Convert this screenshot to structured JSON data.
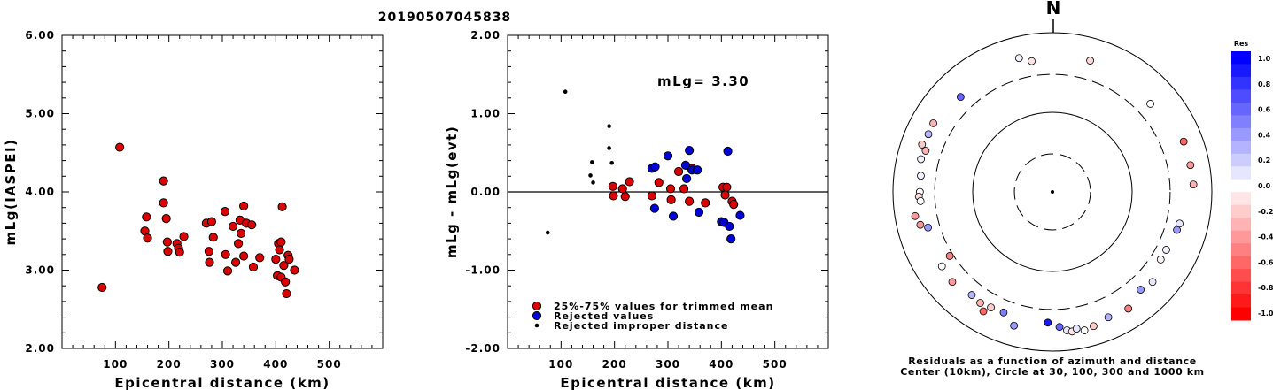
{
  "figure_title": "20190507045838",
  "chart_data": [
    {
      "type": "scatter",
      "xlabel": "Epicentral distance (km)",
      "ylabel": "mLg(IASPEI)",
      "xlim": [
        0,
        600
      ],
      "ylim": [
        2.0,
        6.0
      ],
      "xticks": [
        "100",
        "200",
        "300",
        "400",
        "500"
      ],
      "yticks": [
        "2.00",
        "3.00",
        "4.00",
        "5.00",
        "6.00"
      ],
      "series": [
        {
          "color": "#dd0000",
          "points": [
            [
              75,
              2.78
            ],
            [
              108,
              4.57
            ],
            [
              155,
              3.5
            ],
            [
              158,
              3.68
            ],
            [
              160,
              3.41
            ],
            [
              190,
              4.14
            ],
            [
              190,
              3.86
            ],
            [
              195,
              3.66
            ],
            [
              197,
              3.36
            ],
            [
              198,
              3.24
            ],
            [
              215,
              3.34
            ],
            [
              218,
              3.28
            ],
            [
              220,
              3.23
            ],
            [
              228,
              3.43
            ],
            [
              270,
              3.6
            ],
            [
              275,
              3.24
            ],
            [
              276,
              3.1
            ],
            [
              280,
              3.62
            ],
            [
              283,
              3.42
            ],
            [
              305,
              3.75
            ],
            [
              306,
              3.2
            ],
            [
              310,
              2.99
            ],
            [
              320,
              3.56
            ],
            [
              325,
              3.1
            ],
            [
              330,
              3.34
            ],
            [
              333,
              3.64
            ],
            [
              335,
              3.47
            ],
            [
              340,
              3.82
            ],
            [
              340,
              3.18
            ],
            [
              345,
              3.6
            ],
            [
              355,
              3.58
            ],
            [
              358,
              3.04
            ],
            [
              370,
              3.16
            ],
            [
              400,
              3.14
            ],
            [
              403,
              2.93
            ],
            [
              405,
              3.34
            ],
            [
              407,
              3.26
            ],
            [
              410,
              3.36
            ],
            [
              410,
              2.91
            ],
            [
              412,
              3.81
            ],
            [
              415,
              3.06
            ],
            [
              418,
              2.85
            ],
            [
              420,
              2.7
            ],
            [
              423,
              3.19
            ],
            [
              425,
              3.14
            ],
            [
              435,
              3.0
            ]
          ]
        }
      ]
    },
    {
      "type": "scatter",
      "xlabel": "Epicentral distance (km)",
      "ylabel": "mLg - mLg(evt)",
      "xlim": [
        0,
        600
      ],
      "ylim": [
        -2.0,
        2.0
      ],
      "xticks": [
        "100",
        "200",
        "300",
        "400",
        "500"
      ],
      "yticks": [
        "-2.00",
        "-1.00",
        "0.00",
        "1.00",
        "2.00"
      ],
      "annotation": "mLg= 3.30",
      "reference_line": 0.0,
      "legend": {
        "placement": "bottom-left",
        "entries": [
          {
            "label": "25%-75% values for trimmed mean",
            "color": "#dd0000",
            "marker": "large"
          },
          {
            "label": "Rejected values",
            "color": "#0000dd",
            "marker": "large"
          },
          {
            "label": "Rejected improper distance",
            "color": "#000000",
            "marker": "small"
          }
        ]
      },
      "series": [
        {
          "name": "25%-75% values for trimmed mean",
          "color": "#dd0000",
          "points": [
            [
              197,
              0.07
            ],
            [
              198,
              -0.05
            ],
            [
              215,
              0.04
            ],
            [
              220,
              -0.06
            ],
            [
              228,
              0.13
            ],
            [
              270,
              -0.05
            ],
            [
              283,
              0.12
            ],
            [
              305,
              0.04
            ],
            [
              306,
              -0.1
            ],
            [
              320,
              0.26
            ],
            [
              330,
              0.04
            ],
            [
              340,
              -0.12
            ],
            [
              345,
              0.3
            ],
            [
              370,
              -0.14
            ],
            [
              403,
              0.06
            ],
            [
              407,
              -0.04
            ],
            [
              410,
              0.06
            ],
            [
              420,
              -0.12
            ],
            [
              423,
              -0.16
            ]
          ]
        },
        {
          "name": "Rejected values",
          "color": "#0000dd",
          "points": [
            [
              270,
              0.3
            ],
            [
              275,
              -0.21
            ],
            [
              276,
              0.32
            ],
            [
              300,
              0.46
            ],
            [
              310,
              -0.31
            ],
            [
              333,
              0.34
            ],
            [
              335,
              0.17
            ],
            [
              340,
              0.53
            ],
            [
              345,
              0.28
            ],
            [
              355,
              0.28
            ],
            [
              358,
              -0.26
            ],
            [
              400,
              -0.38
            ],
            [
              405,
              -0.39
            ],
            [
              412,
              0.52
            ],
            [
              415,
              -0.44
            ],
            [
              418,
              -0.6
            ],
            [
              435,
              -0.3
            ]
          ]
        },
        {
          "name": "Rejected improper distance",
          "color": "#000000",
          "points": [
            [
              75,
              -0.52
            ],
            [
              108,
              1.28
            ],
            [
              155,
              0.21
            ],
            [
              158,
              0.38
            ],
            [
              160,
              0.12
            ],
            [
              190,
              0.84
            ],
            [
              190,
              0.56
            ],
            [
              195,
              0.37
            ]
          ]
        }
      ]
    },
    {
      "type": "polar-scatter",
      "north_label": "N",
      "rings_km": [
        30,
        100,
        300,
        1000
      ],
      "caption_line1": "Residuals as a function of azimuth and distance",
      "caption_line2": "Center (10km), Circle at 30, 100, 300 and 1000 km",
      "colorbar": {
        "title": "Res",
        "ticks": [
          "1.0",
          "0.8",
          "0.6",
          "0.4",
          "0.2",
          "0.0",
          "-0.2",
          "-0.4",
          "-0.6",
          "-0.8",
          "-1.0"
        ],
        "max_color": "#0000ff",
        "mid_color": "#ffffff",
        "min_color": "#ff0000"
      },
      "points": [
        {
          "azimuth_deg": 346,
          "distance_km": 540,
          "residual": 0.05
        },
        {
          "azimuth_deg": 16,
          "distance_km": 520,
          "residual": -0.15
        },
        {
          "azimuth_deg": 351,
          "distance_km": 460,
          "residual": -0.1
        },
        {
          "azimuth_deg": 316,
          "distance_km": 455,
          "residual": 0.6
        },
        {
          "azimuth_deg": 300,
          "distance_km": 530,
          "residual": -0.3
        },
        {
          "azimuth_deg": 295,
          "distance_km": 520,
          "residual": 0.3
        },
        {
          "azimuth_deg": 290,
          "distance_km": 550,
          "residual": -0.2
        },
        {
          "azimuth_deg": 288,
          "distance_km": 470,
          "residual": -0.3
        },
        {
          "azimuth_deg": 284,
          "distance_km": 500,
          "residual": 0.05
        },
        {
          "azimuth_deg": 277,
          "distance_km": 460,
          "residual": 0.05
        },
        {
          "azimuth_deg": 270,
          "distance_km": 460,
          "residual": 0.0
        },
        {
          "azimuth_deg": 268,
          "distance_km": 475,
          "residual": -0.15
        },
        {
          "azimuth_deg": 266,
          "distance_km": 455,
          "residual": 0.0
        },
        {
          "azimuth_deg": 260,
          "distance_km": 560,
          "residual": -0.4
        },
        {
          "azimuth_deg": 256,
          "distance_km": 510,
          "residual": -0.4
        },
        {
          "azimuth_deg": 254,
          "distance_km": 420,
          "residual": 0.4
        },
        {
          "azimuth_deg": 238,
          "distance_km": 330,
          "residual": -0.5
        },
        {
          "azimuth_deg": 236,
          "distance_km": 470,
          "residual": 0.0
        },
        {
          "azimuth_deg": 228,
          "distance_km": 490,
          "residual": -0.4
        },
        {
          "azimuth_deg": 218,
          "distance_km": 440,
          "residual": 0.3
        },
        {
          "azimuth_deg": 210,
          "distance_km": 540,
          "residual": -0.6
        },
        {
          "azimuth_deg": 213,
          "distance_km": 460,
          "residual": -0.3
        },
        {
          "azimuth_deg": 208,
          "distance_km": 440,
          "residual": -0.2
        },
        {
          "azimuth_deg": 202,
          "distance_km": 430,
          "residual": 0.5
        },
        {
          "azimuth_deg": 196,
          "distance_km": 560,
          "residual": 0.4
        },
        {
          "azimuth_deg": 182,
          "distance_km": 440,
          "residual": 0.9
        },
        {
          "azimuth_deg": 177,
          "distance_km": 500,
          "residual": 0.6
        },
        {
          "azimuth_deg": 174,
          "distance_km": 560,
          "residual": 0.1
        },
        {
          "azimuth_deg": 172,
          "distance_km": 590,
          "residual": -0.1
        },
        {
          "azimuth_deg": 170,
          "distance_km": 555,
          "residual": 0.1
        },
        {
          "azimuth_deg": 167,
          "distance_km": 610,
          "residual": 0.0
        },
        {
          "azimuth_deg": 163,
          "distance_km": 580,
          "residual": -0.2
        },
        {
          "azimuth_deg": 156,
          "distance_km": 530,
          "residual": 0.3
        },
        {
          "azimuth_deg": 147,
          "distance_km": 560,
          "residual": -0.5
        },
        {
          "azimuth_deg": 138,
          "distance_km": 450,
          "residual": 0.4
        },
        {
          "azimuth_deg": 132,
          "distance_km": 490,
          "residual": 0.1
        },
        {
          "azimuth_deg": 122,
          "distance_km": 400,
          "residual": -0.05
        },
        {
          "azimuth_deg": 117,
          "distance_km": 400,
          "residual": 0.05
        },
        {
          "azimuth_deg": 107,
          "distance_km": 430,
          "residual": 0.4
        },
        {
          "azimuth_deg": 104,
          "distance_km": 440,
          "residual": 0.1
        },
        {
          "azimuth_deg": 87,
          "distance_km": 590,
          "residual": -0.3
        },
        {
          "azimuth_deg": 79,
          "distance_km": 580,
          "residual": -0.4
        },
        {
          "azimuth_deg": 69,
          "distance_km": 580,
          "residual": -0.6
        },
        {
          "azimuth_deg": 48,
          "distance_km": 450,
          "residual": 0.0
        }
      ]
    }
  ]
}
